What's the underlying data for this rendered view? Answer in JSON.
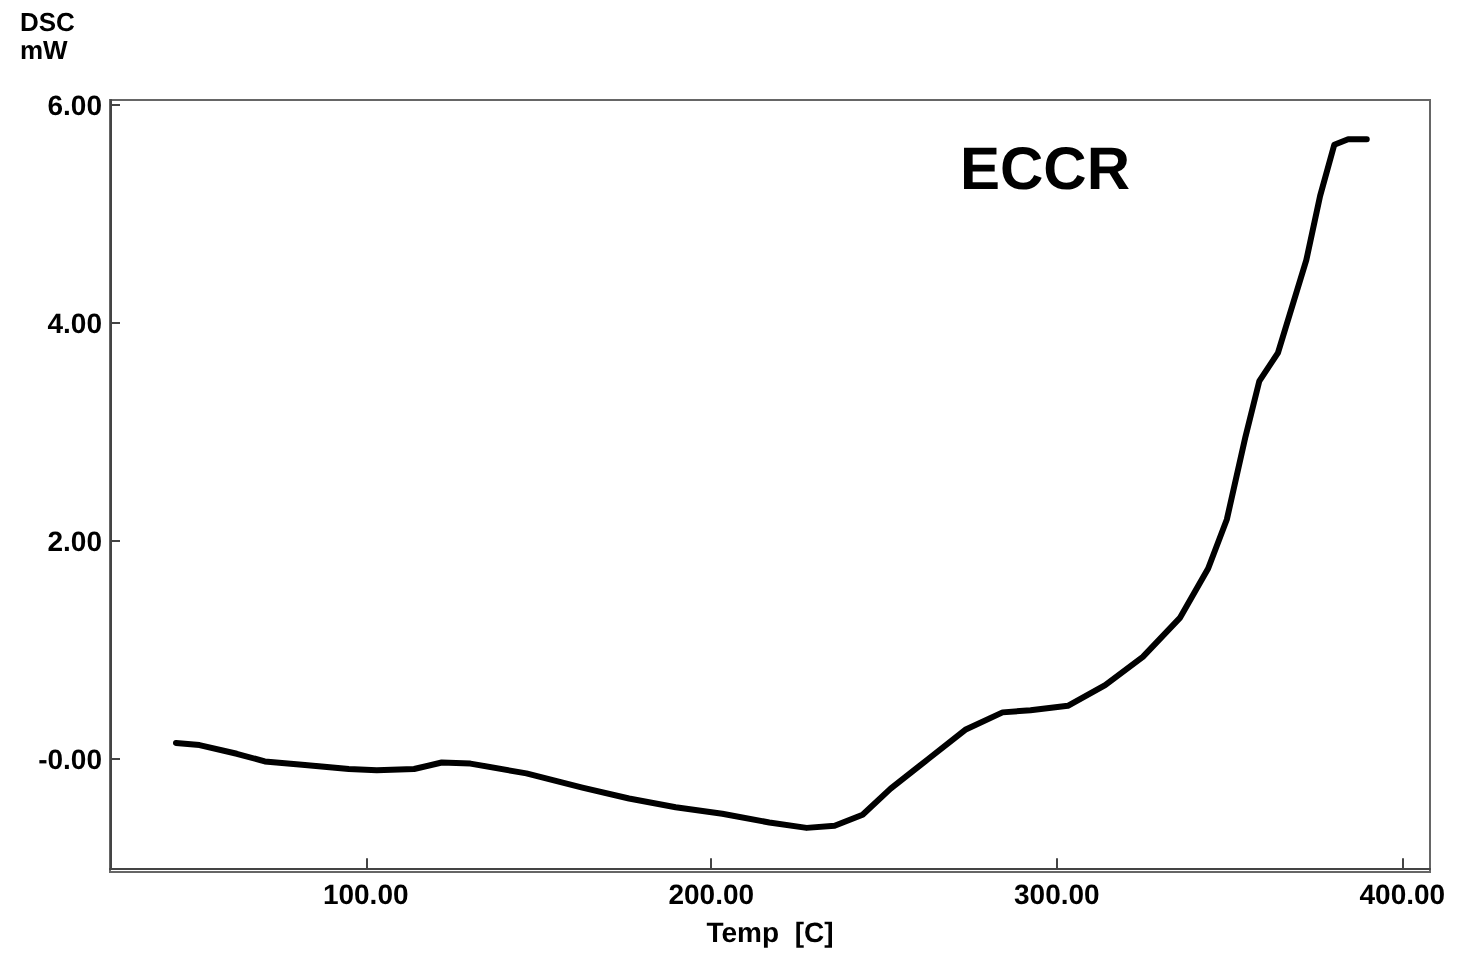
{
  "chart_data": {
    "type": "line",
    "ylabel": "DSC\nmW",
    "xlabel": "Temp  [C]",
    "annotations": [
      "ECCR"
    ],
    "x": [
      45.1,
      51.9,
      62.7,
      70.8,
      81.6,
      95.1,
      103.2,
      114,
      122,
      130.3,
      146.5,
      162.7,
      176.2,
      189.7,
      203.2,
      216.8,
      227.6,
      235.7,
      243.8,
      251.9,
      262.7,
      273.5,
      284.3,
      292.4,
      303.2,
      314,
      324.9,
      335.7,
      343.8,
      349.2,
      354.6,
      358.6,
      364,
      372.2,
      376.2,
      380.3,
      384.3,
      389.7
    ],
    "series": [
      {
        "color": "#000000",
        "values": [
          0.15,
          0.13,
          0.05,
          -0.02,
          -0.05,
          -0.09,
          -0.1,
          -0.09,
          -0.03,
          -0.04,
          -0.13,
          -0.26,
          -0.36,
          -0.44,
          -0.5,
          -0.58,
          -0.63,
          -0.61,
          -0.51,
          -0.27,
          0,
          0.27,
          0.43,
          0.45,
          0.49,
          0.68,
          0.94,
          1.3,
          1.75,
          2.2,
          2.96,
          3.47,
          3.73,
          4.58,
          5.17,
          5.64,
          5.69,
          5.69
        ]
      }
    ],
    "xlim": [
      26,
      408
    ],
    "ylim": [
      -1,
      6.05
    ],
    "xticks": [
      {
        "value": 100,
        "label": "100.00"
      },
      {
        "value": 200,
        "label": "200.00"
      },
      {
        "value": 300,
        "label": "300.00"
      },
      {
        "value": 400,
        "label": "400.00"
      }
    ],
    "yticks": [
      {
        "value": 0,
        "label": "-0.00"
      },
      {
        "value": 2,
        "label": "2.00"
      },
      {
        "value": 4,
        "label": "4.00"
      },
      {
        "value": 6,
        "label": "6.00"
      }
    ],
    "grid": false,
    "marker": "none",
    "line_style": "solid"
  }
}
